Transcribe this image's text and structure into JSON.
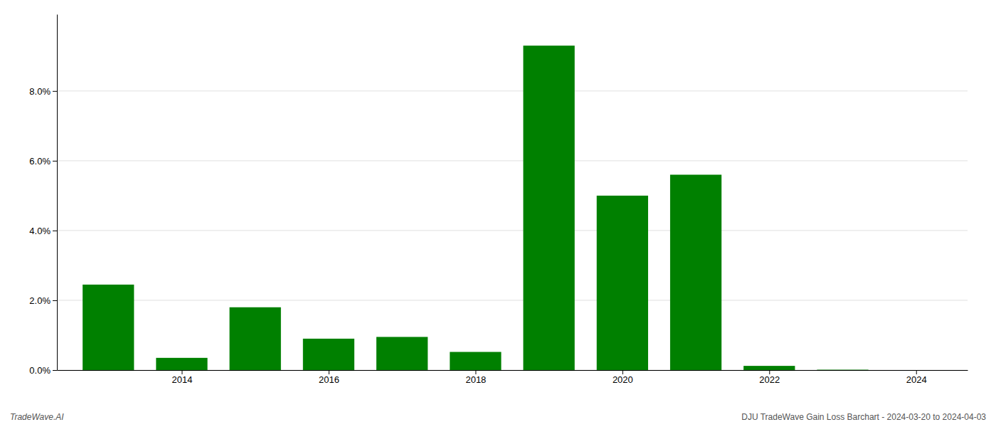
{
  "chart_data": {
    "type": "bar",
    "x": [
      2013,
      2014,
      2015,
      2016,
      2017,
      2018,
      2019,
      2020,
      2021,
      2022,
      2023
    ],
    "values": [
      0.0245,
      0.0035,
      0.018,
      0.009,
      0.0095,
      0.0052,
      0.093,
      0.05,
      0.056,
      0.0012,
      0.0001
    ],
    "color": "#008000",
    "xlim": [
      2012.3,
      2024.7
    ],
    "xticks": [
      2014,
      2016,
      2018,
      2020,
      2022,
      2024
    ],
    "ylim": [
      0,
      0.102
    ],
    "yticks": [
      {
        "value": 0.0,
        "label": "0.0%"
      },
      {
        "value": 0.02,
        "label": "2.0%"
      },
      {
        "value": 0.04,
        "label": "4.0%"
      },
      {
        "value": 0.06,
        "label": "6.0%"
      },
      {
        "value": 0.08,
        "label": "8.0%"
      }
    ],
    "grid": true,
    "annotations": [
      "TradeWave.AI",
      "DJU TradeWave Gain Loss Barchart - 2024-03-20 to 2024-04-03"
    ]
  }
}
